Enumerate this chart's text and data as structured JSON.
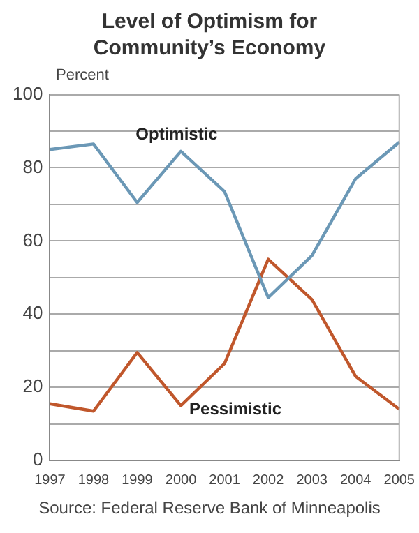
{
  "chart_data": {
    "type": "line",
    "title": "Level of Optimism for Community’s Economy",
    "ylabel": "Percent",
    "categories": [
      "1997",
      "1998",
      "1999",
      "2000",
      "2001",
      "2002",
      "2003",
      "2004",
      "2005"
    ],
    "series": [
      {
        "name": "Optimistic",
        "color": "#6b98b6",
        "values": [
          85,
          86.5,
          70.5,
          84.5,
          73.5,
          44.5,
          56,
          77,
          87
        ]
      },
      {
        "name": "Pessimistic",
        "color": "#c0572c",
        "values": [
          15.5,
          13.5,
          29.5,
          15,
          26.5,
          55,
          44,
          23,
          14
        ]
      }
    ],
    "ylim": [
      0,
      100
    ],
    "yticks": [
      0,
      {
        "value": 10,
        "label": null
      },
      20,
      {
        "value": 30,
        "label": null
      },
      40,
      {
        "value": 50,
        "label": null
      },
      60,
      {
        "value": 70,
        "label": null
      },
      80,
      {
        "value": 90,
        "label": null
      },
      100
    ],
    "grid": "y",
    "legend": false,
    "marker": "none",
    "line_style": "solid",
    "annotations": [
      "Source: Federal Reserve Bank of Minneapolis"
    ]
  }
}
